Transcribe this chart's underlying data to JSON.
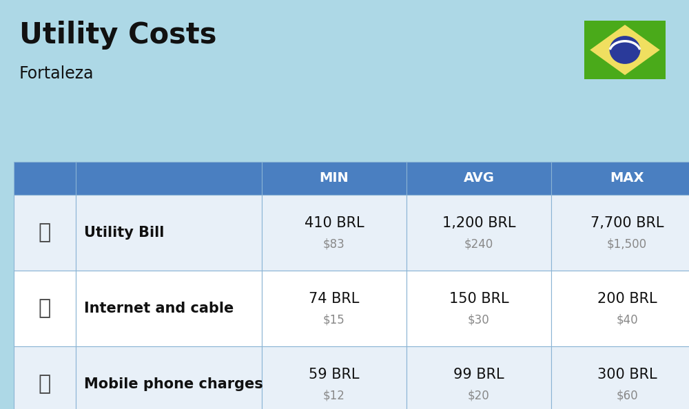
{
  "title": "Utility Costs",
  "subtitle": "Fortaleza",
  "background_color": "#ADD8E6",
  "header_bg_color": "#4a7fc1",
  "header_text_color": "#FFFFFF",
  "row_colors": [
    "#e8f0f8",
    "#FFFFFF",
    "#e8f0f8"
  ],
  "headers": [
    "MIN",
    "AVG",
    "MAX"
  ],
  "rows": [
    {
      "label": "Utility Bill",
      "min_brl": "410 BRL",
      "min_usd": "$83",
      "avg_brl": "1,200 BRL",
      "avg_usd": "$240",
      "max_brl": "7,700 BRL",
      "max_usd": "$1,500"
    },
    {
      "label": "Internet and cable",
      "min_brl": "74 BRL",
      "min_usd": "$15",
      "avg_brl": "150 BRL",
      "avg_usd": "$30",
      "max_brl": "200 BRL",
      "max_usd": "$40"
    },
    {
      "label": "Mobile phone charges",
      "min_brl": "59 BRL",
      "min_usd": "$12",
      "avg_brl": "99 BRL",
      "avg_usd": "$20",
      "max_brl": "300 BRL",
      "max_usd": "$60"
    }
  ],
  "text_color_dark": "#111111",
  "text_color_usd": "#888888",
  "border_color": "#8ab4d4",
  "flag_green": "#4aaa1a",
  "flag_yellow": "#f0df60",
  "flag_blue": "#2a3a9a",
  "fig_width": 10.0,
  "fig_height": 5.94,
  "dpi": 100
}
